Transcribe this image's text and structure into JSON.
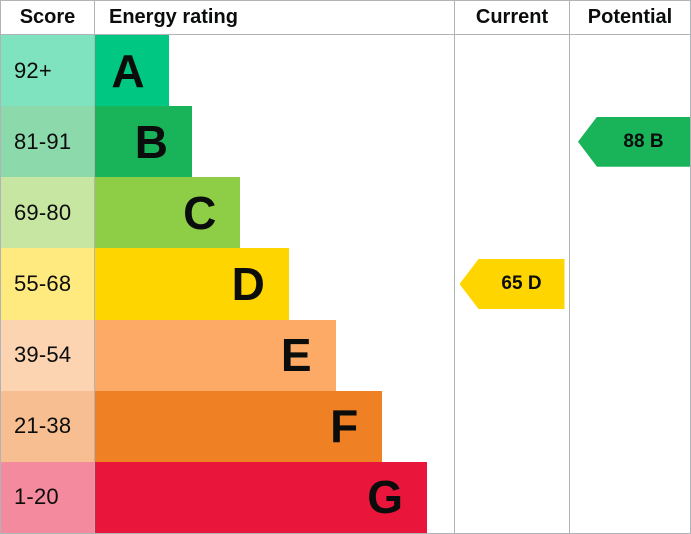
{
  "header": {
    "score": "Score",
    "energy_rating": "Energy rating",
    "current": "Current",
    "potential": "Potential"
  },
  "chart_data": {
    "type": "bar",
    "title": "Energy rating",
    "bands": [
      {
        "score": "92+",
        "letter": "A",
        "color": "#00c781",
        "score_bg": "#80e3c0",
        "width_pct": 20.5
      },
      {
        "score": "81-91",
        "letter": "B",
        "color": "#19b459",
        "score_bg": "#8cd9ac",
        "width_pct": 27
      },
      {
        "score": "69-80",
        "letter": "C",
        "color": "#8dce46",
        "score_bg": "#c6e6a2",
        "width_pct": 40.5
      },
      {
        "score": "55-68",
        "letter": "D",
        "color": "#ffd500",
        "score_bg": "#ffea7f",
        "width_pct": 54
      },
      {
        "score": "39-54",
        "letter": "E",
        "color": "#fcaa65",
        "score_bg": "#fdd4b2",
        "width_pct": 67
      },
      {
        "score": "21-38",
        "letter": "F",
        "color": "#ef8023",
        "score_bg": "#f7bf91",
        "width_pct": 80
      },
      {
        "score": "1-20",
        "letter": "G",
        "color": "#e9153b",
        "score_bg": "#f48a9d",
        "width_pct": 92.5
      }
    ],
    "current": {
      "value": 65,
      "letter": "D",
      "label": "65 D",
      "color": "#ffd500",
      "band_index": 3
    },
    "potential": {
      "value": 88,
      "letter": "B",
      "label": "88 B",
      "color": "#19b459",
      "band_index": 1
    }
  }
}
